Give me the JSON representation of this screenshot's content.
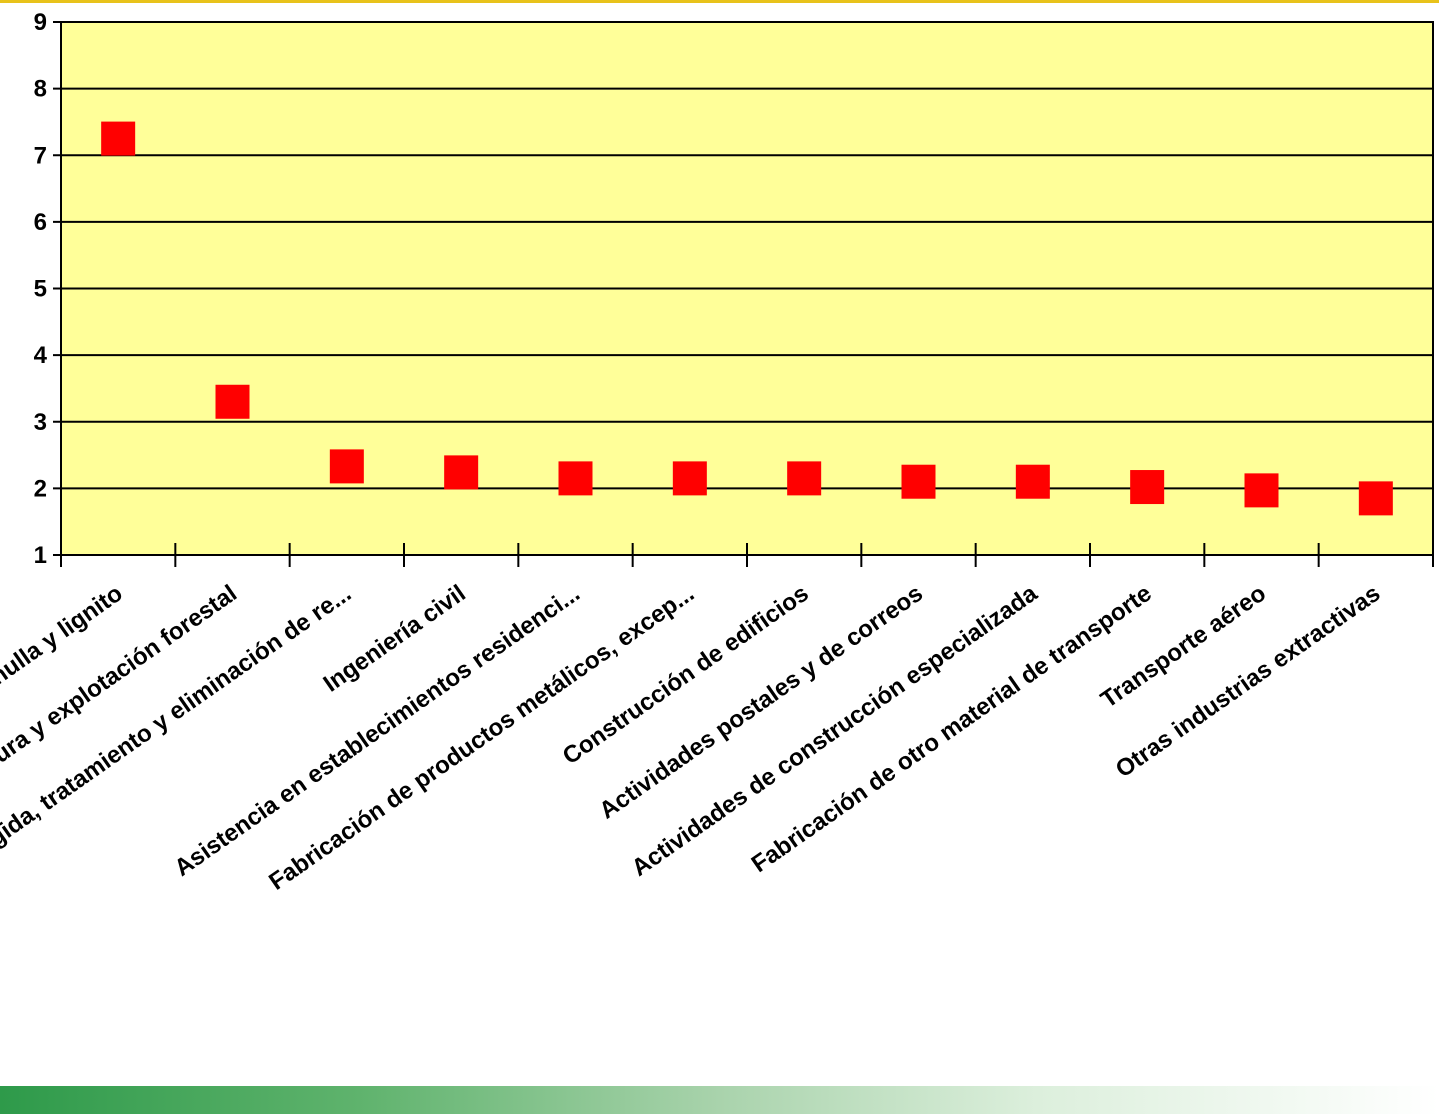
{
  "colors": {
    "plot_background": "#ffff99",
    "marker": "#ff0000",
    "gridline": "#000000",
    "footer_band_start": "#2e9a4a",
    "top_rule": "#e8c21a"
  },
  "chart_data": {
    "type": "scatter",
    "title": "",
    "xlabel": "",
    "ylabel": "",
    "ylim": [
      1,
      9
    ],
    "y_ticks": [
      "1",
      "2",
      "3",
      "4",
      "5",
      "6",
      "7",
      "8",
      "9"
    ],
    "grid": true,
    "legend": "none",
    "marker": "square",
    "categories": [
      "Extracción de antracita, hulla y lignito",
      "Silvicultura y explotación forestal",
      "Recogida, tratamiento y eliminación de re...",
      "Ingeniería civil",
      "Asistencia en establecimientos residenci...",
      "Fabricación de productos metálicos, excep...",
      "Construcción de edificios",
      "Actividades postales y de correos",
      "Actividades de construcción especializada",
      "Fabricación de otro material de transporte",
      "Transporte aéreo",
      "Otras industrias extractivas"
    ],
    "values": [
      7.25,
      3.3,
      2.33,
      2.24,
      2.15,
      2.15,
      2.15,
      2.1,
      2.1,
      2.02,
      1.97,
      1.85
    ]
  }
}
